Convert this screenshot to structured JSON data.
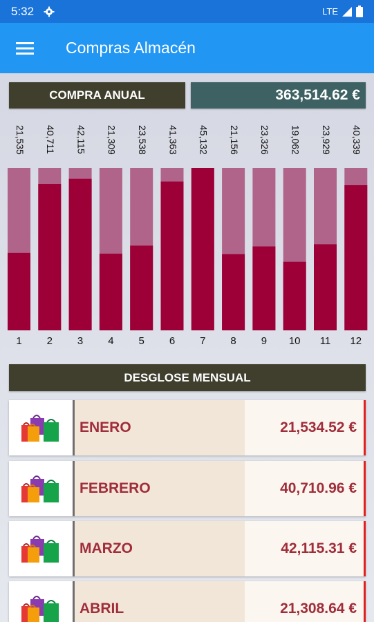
{
  "status_bar": {
    "time": "5:32",
    "network": "LTE"
  },
  "app_bar": {
    "title": "Compras Almacén"
  },
  "summary": {
    "label": "COMPRA ANUAL",
    "value": "363,514.62 €"
  },
  "colors": {
    "bar_fill": "#9c0036",
    "bar_track": "#b0648a",
    "header_dark": "#403f2e",
    "total_bg": "#3e6163",
    "accent_red": "#a02d3a"
  },
  "chart_data": {
    "type": "bar",
    "categories": [
      "1",
      "2",
      "3",
      "4",
      "5",
      "6",
      "7",
      "8",
      "9",
      "10",
      "11",
      "12"
    ],
    "value_labels": [
      "21,535",
      "40,711",
      "42,115",
      "21,309",
      "23,538",
      "41,363",
      "45,132",
      "21,156",
      "23,326",
      "19,062",
      "23,929",
      "40,339"
    ],
    "values": [
      21535,
      40711,
      42115,
      21309,
      23538,
      41363,
      45132,
      21156,
      23326,
      19062,
      23929,
      40339
    ],
    "ylim": [
      0,
      45132
    ]
  },
  "breakdown": {
    "header": "DESGLOSE MENSUAL",
    "months": [
      {
        "name": "ENERO",
        "amount": "21,534.52 €",
        "icon": "shopping-bags-icon"
      },
      {
        "name": "FEBRERO",
        "amount": "40,710.96 €",
        "icon": "shopping-bags-icon"
      },
      {
        "name": "MARZO",
        "amount": "42,115.31 €",
        "icon": "shopping-bags-icon"
      },
      {
        "name": "ABRIL",
        "amount": "21,308.64 €",
        "icon": "shopping-bags-icon"
      }
    ]
  }
}
